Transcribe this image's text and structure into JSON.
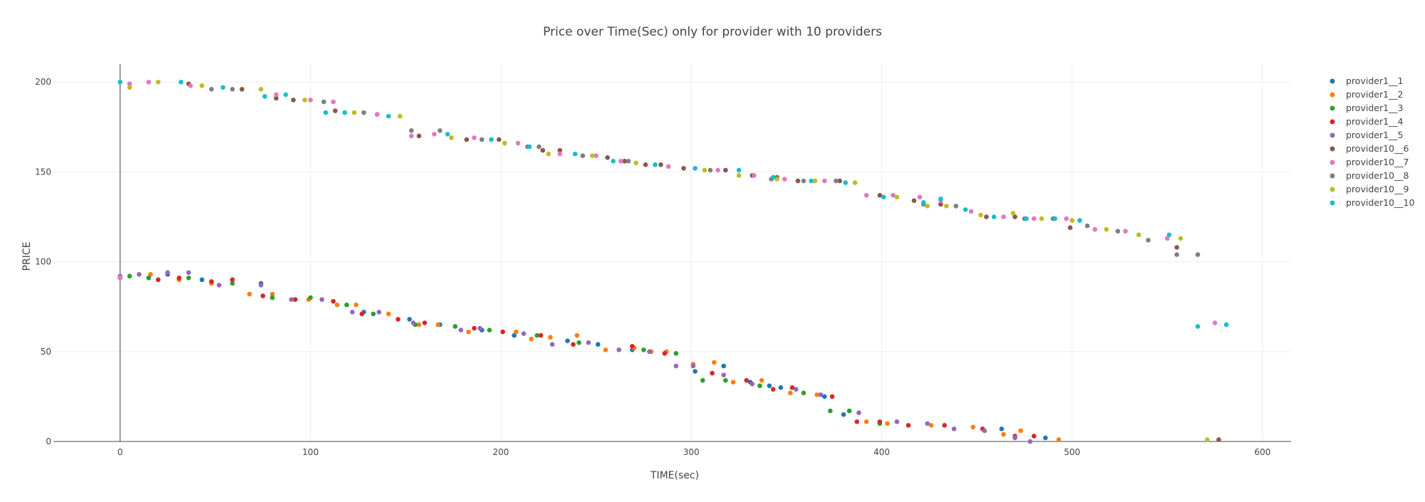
{
  "colors": {
    "background": "#ffffff",
    "grid": "#eeeeee",
    "axis": "#444444",
    "text": "#444444"
  },
  "chart_data": {
    "type": "scatter",
    "title": "Price over Time(Sec) only for provider with 10 providers",
    "xlabel": "TIME(sec)",
    "ylabel": "PRICE",
    "xlim": [
      -35,
      615
    ],
    "ylim": [
      0,
      210
    ],
    "xticks": [
      0,
      100,
      200,
      300,
      400,
      500,
      600
    ],
    "yticks": [
      0,
      50,
      100,
      150,
      200
    ],
    "grid": true,
    "legend": "right",
    "series": [
      {
        "name": "provider1__1",
        "color": "#1f77b4",
        "x": [
          0,
          15,
          25,
          43,
          74,
          128,
          152,
          168,
          190,
          207,
          235,
          251,
          269,
          302,
          317,
          331,
          341,
          347,
          370,
          380,
          463,
          486
        ],
        "y": [
          91,
          91,
          93,
          90,
          88,
          72,
          68,
          65,
          62,
          59,
          56,
          54,
          51,
          39,
          42,
          33,
          31,
          30,
          25,
          15,
          7,
          2
        ]
      },
      {
        "name": "provider1__2",
        "color": "#ff7f0e",
        "x": [
          0,
          16,
          31,
          48,
          68,
          80,
          99,
          114,
          124,
          141,
          157,
          167,
          183,
          208,
          216,
          226,
          240,
          255,
          270,
          279,
          287,
          301,
          312,
          322,
          337,
          352,
          366,
          383,
          392,
          403,
          426,
          448,
          464,
          473,
          493
        ],
        "y": [
          91,
          93,
          90,
          88,
          82,
          82,
          79,
          76,
          76,
          71,
          65,
          65,
          61,
          61,
          57,
          58,
          59,
          51,
          52,
          50,
          50,
          43,
          44,
          33,
          34,
          27,
          26,
          17,
          11,
          10,
          9,
          8,
          4,
          6,
          1
        ]
      },
      {
        "name": "provider1__3",
        "color": "#2ca02c",
        "x": [
          5,
          15,
          36,
          59,
          80,
          100,
          119,
          133,
          155,
          176,
          194,
          219,
          241,
          275,
          292,
          306,
          318,
          336,
          359,
          373,
          383,
          399
        ],
        "y": [
          92,
          91,
          91,
          88,
          80,
          80,
          76,
          71,
          65,
          64,
          62,
          59,
          55,
          51,
          49,
          34,
          34,
          31,
          27,
          17,
          17,
          10
        ]
      },
      {
        "name": "provider1__4",
        "color": "#d62728",
        "x": [
          20,
          31,
          48,
          59,
          75,
          92,
          112,
          127,
          146,
          160,
          186,
          201,
          221,
          238,
          269,
          286,
          311,
          329,
          343,
          353,
          374,
          387,
          399,
          414,
          433,
          453,
          470,
          480
        ],
        "y": [
          90,
          91,
          89,
          90,
          81,
          79,
          78,
          71,
          68,
          66,
          63,
          61,
          59,
          54,
          53,
          49,
          38,
          34,
          29,
          30,
          25,
          11,
          11,
          9,
          9,
          7,
          3,
          3
        ]
      },
      {
        "name": "provider1__5",
        "color": "#9467bd",
        "x": [
          0,
          10,
          25,
          36,
          52,
          74,
          90,
          106,
          122,
          136,
          154,
          179,
          189,
          212,
          227,
          246,
          262,
          278,
          292,
          301,
          317,
          332,
          355,
          368,
          388,
          408,
          424,
          438,
          454,
          470,
          478
        ],
        "y": [
          92,
          93,
          94,
          94,
          87,
          87,
          79,
          79,
          72,
          72,
          66,
          62,
          63,
          60,
          54,
          55,
          51,
          50,
          42,
          42,
          37,
          32,
          29,
          26,
          16,
          11,
          10,
          7,
          6,
          2,
          0
        ]
      },
      {
        "name": "provider10__6",
        "color": "#8c564b",
        "x": [
          36,
          64,
          82,
          91,
          113,
          135,
          157,
          182,
          199,
          222,
          231,
          256,
          265,
          276,
          284,
          296,
          318,
          332,
          345,
          356,
          378,
          399,
          417,
          431,
          455,
          470,
          499,
          555,
          577
        ],
        "y": [
          199,
          196,
          191,
          190,
          184,
          182,
          170,
          168,
          168,
          162,
          162,
          158,
          156,
          154,
          154,
          152,
          151,
          148,
          147,
          145,
          145,
          137,
          134,
          132,
          125,
          125,
          119,
          108,
          1
        ]
      },
      {
        "name": "provider10__7",
        "color": "#e377c2",
        "x": [
          0,
          5,
          15,
          37,
          82,
          100,
          112,
          135,
          153,
          165,
          186,
          209,
          231,
          250,
          263,
          288,
          302,
          314,
          333,
          349,
          370,
          392,
          406,
          420,
          431,
          447,
          464,
          480,
          497,
          512,
          528,
          550,
          575
        ],
        "y": [
          91,
          199,
          200,
          198,
          193,
          190,
          189,
          182,
          170,
          171,
          169,
          166,
          160,
          159,
          156,
          153,
          152,
          151,
          148,
          146,
          145,
          137,
          137,
          136,
          134,
          128,
          125,
          124,
          124,
          118,
          117,
          113,
          66
        ]
      },
      {
        "name": "provider10__8",
        "color": "#7f7f7f",
        "x": [
          48,
          59,
          107,
          128,
          153,
          168,
          190,
          214,
          220,
          243,
          267,
          310,
          342,
          359,
          376,
          422,
          439,
          475,
          490,
          508,
          524,
          540,
          555,
          566
        ],
        "y": [
          196,
          196,
          189,
          183,
          173,
          173,
          168,
          164,
          164,
          159,
          156,
          151,
          146,
          145,
          145,
          132,
          131,
          124,
          124,
          120,
          117,
          112,
          104,
          104
        ]
      },
      {
        "name": "provider10__9",
        "color": "#bcbd22",
        "x": [
          5,
          20,
          43,
          74,
          97,
          123,
          147,
          174,
          202,
          225,
          248,
          271,
          307,
          325,
          345,
          365,
          386,
          408,
          424,
          434,
          452,
          469,
          484,
          500,
          518,
          535,
          557,
          571
        ],
        "y": [
          197,
          200,
          198,
          196,
          190,
          183,
          181,
          169,
          166,
          160,
          159,
          155,
          151,
          148,
          146,
          145,
          144,
          136,
          131,
          131,
          126,
          127,
          124,
          123,
          118,
          115,
          113,
          1
        ]
      },
      {
        "name": "provider10__10",
        "color": "#17becf",
        "x": [
          0,
          32,
          54,
          76,
          87,
          108,
          118,
          141,
          172,
          195,
          215,
          239,
          259,
          281,
          302,
          325,
          343,
          363,
          381,
          401,
          422,
          431,
          444,
          459,
          476,
          491,
          504,
          551,
          566,
          581
        ],
        "y": [
          200,
          200,
          197,
          192,
          193,
          183,
          183,
          181,
          171,
          168,
          164,
          160,
          156,
          154,
          152,
          151,
          147,
          145,
          144,
          136,
          133,
          135,
          129,
          125,
          124,
          124,
          123,
          115,
          64,
          65
        ]
      }
    ]
  }
}
